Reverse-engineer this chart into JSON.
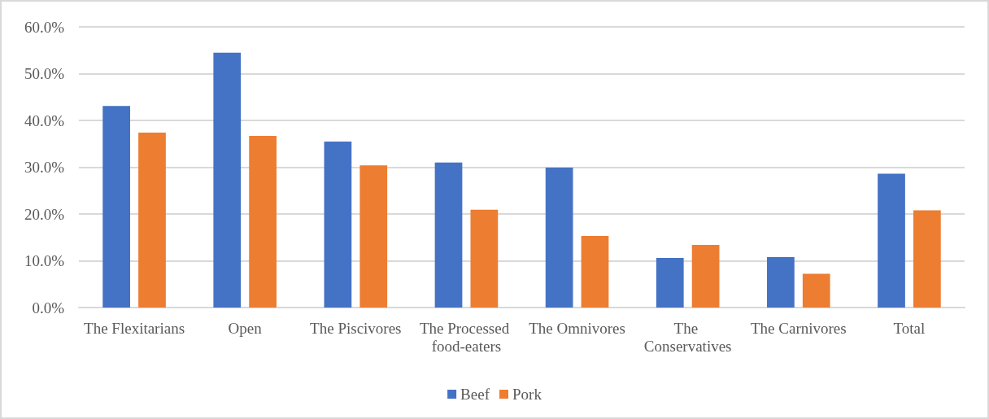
{
  "chart_data": {
    "type": "bar",
    "categories": [
      "The Flexitarians",
      "Open",
      "The Piscivores",
      "The Processed food-eaters",
      "The Omnivores",
      "The Conservatives",
      "The Carnivores",
      "Total"
    ],
    "series": [
      {
        "name": "Beef",
        "color": "#4472c4",
        "values": [
          43.1,
          54.5,
          35.5,
          31.0,
          29.9,
          10.6,
          10.8,
          28.6
        ]
      },
      {
        "name": "Pork",
        "color": "#ed7d31",
        "values": [
          37.4,
          36.7,
          30.4,
          20.9,
          15.3,
          13.4,
          7.2,
          20.8
        ]
      }
    ],
    "ylim": [
      0,
      60
    ],
    "yticks": [
      {
        "value": 0,
        "label": "0.0%"
      },
      {
        "value": 10,
        "label": "10.0%"
      },
      {
        "value": 20,
        "label": "20.0%"
      },
      {
        "value": 30,
        "label": "30.0%"
      },
      {
        "value": 40,
        "label": "40.0%"
      },
      {
        "value": 50,
        "label": "50.0%"
      },
      {
        "value": 60,
        "label": "60.0%"
      }
    ],
    "grid": "y",
    "legend": "bottom"
  }
}
